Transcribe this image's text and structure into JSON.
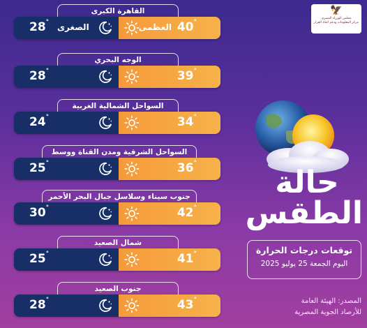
{
  "header": {
    "logo": {
      "line1": "مجلس الوزراء المصري",
      "line2": "مركز المعلومات ودعم اتخاذ القرار"
    }
  },
  "title": {
    "line1": "حالة",
    "line2": "الطقس"
  },
  "forecast": {
    "heading": "توقعات درجات الحرارة",
    "date": "اليوم  الجمعة 25 يوليو 2025"
  },
  "source": {
    "line1": "المصدر: الهيئة العامة",
    "line2": "للأرصاد الجوية المصرية"
  },
  "labels": {
    "max": "العظمى",
    "min": "الصغرى"
  },
  "colors": {
    "night_bar": "#182e66",
    "day_bar": "#f59a3a"
  },
  "regions": [
    {
      "name": "القاهرة الكبرى",
      "max": "40",
      "min": "28",
      "show_labels": true
    },
    {
      "name": "الوجه البحري",
      "max": "39",
      "min": "28"
    },
    {
      "name": "السواحل الشمالية الغربية",
      "max": "34",
      "min": "24"
    },
    {
      "name": "السواحل الشرقية ومدن القناة ووسط سيناء",
      "max": "36",
      "min": "25"
    },
    {
      "name": "جنوب سيناء وسلاسل جبال البحر الأحمر",
      "max": "42",
      "min": "30"
    },
    {
      "name": "شمال الصعيد",
      "max": "41",
      "min": "25"
    },
    {
      "name": "جنوب الصعيد",
      "max": "43",
      "min": "28"
    }
  ],
  "degree": "°"
}
